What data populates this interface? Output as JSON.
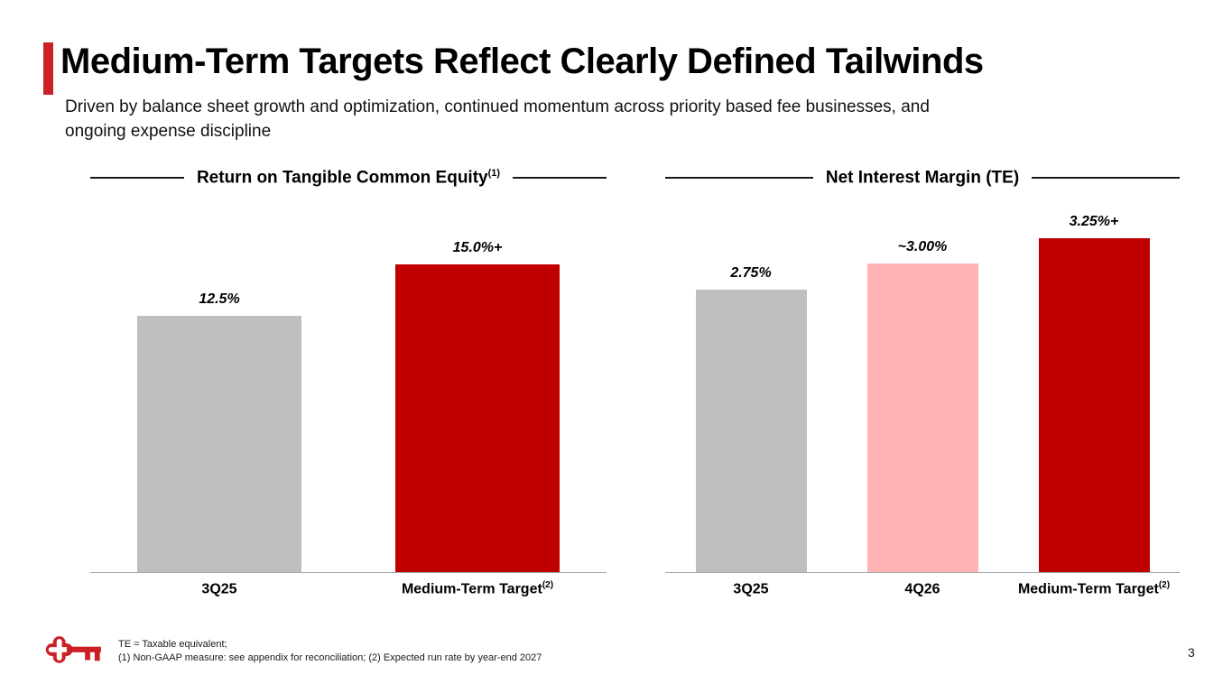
{
  "slide": {
    "title": "Medium-Term Targets Reflect Clearly Defined Tailwinds",
    "subtitle_lines": [
      "Driven by balance sheet growth and optimization, continued momentum across priority based fee businesses, and",
      "ongoing expense discipline"
    ],
    "page_number": "3",
    "footnote_lines": [
      "TE = Taxable equivalent;",
      "(1) Non-GAAP measure: see appendix for reconciliation; (2) Expected run rate by year-end 2027"
    ],
    "logo": "keybank-key-logo",
    "colors": {
      "accent_red": "#cb2026",
      "bar_red": "#c00000",
      "bar_gray": "#bfbfbf",
      "bar_pink": "#ffb3b3",
      "axis_gray": "#a6a6a6"
    }
  },
  "chart_data": [
    {
      "type": "bar",
      "title": "Return on Tangible Common Equity",
      "title_superscript": "(1)",
      "unit": "%",
      "categories": [
        "3Q25",
        "Medium-Term Target"
      ],
      "category_superscripts": [
        "",
        "(2)"
      ],
      "values": [
        12.5,
        15.0
      ],
      "value_labels": [
        "12.5%",
        "15.0%+"
      ],
      "bar_colors": [
        "#bfbfbf",
        "#c00000"
      ],
      "ylim": [
        0,
        18.4
      ],
      "grid": false,
      "legend": false
    },
    {
      "type": "bar",
      "title": "Net Interest Margin (TE)",
      "title_superscript": "",
      "unit": "%",
      "categories": [
        "3Q25",
        "4Q26",
        "Medium-Term Target"
      ],
      "category_superscripts": [
        "",
        "",
        "(2)"
      ],
      "values": [
        2.75,
        3.0,
        3.25
      ],
      "value_labels": [
        "2.75%",
        "~3.00%",
        "3.25%+"
      ],
      "bar_colors": [
        "#bfbfbf",
        "#ffb3b3",
        "#c00000"
      ],
      "ylim": [
        0,
        3.67
      ],
      "grid": false,
      "legend": false
    }
  ]
}
